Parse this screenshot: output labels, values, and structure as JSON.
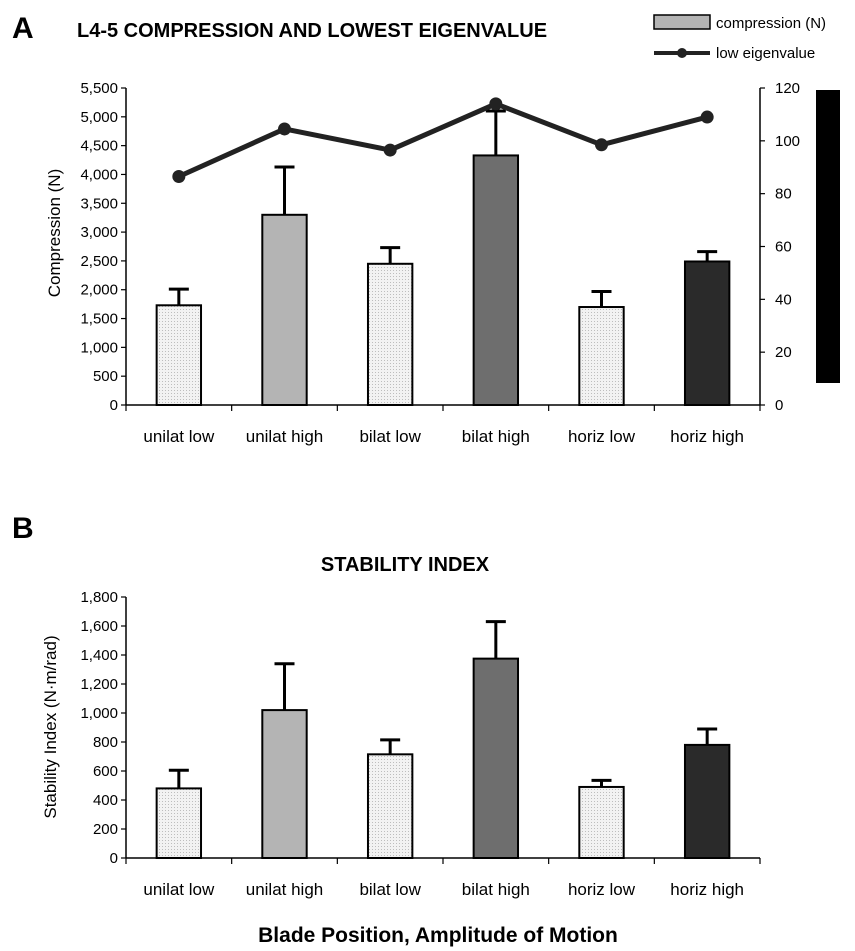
{
  "figure": {
    "panel_a_letter": "A",
    "panel_b_letter": "B",
    "shared_xlabel": "Blade Position, Amplitude of Motion"
  },
  "colors": {
    "dotted_fill": "#ebebeb",
    "unilat_high": "#b4b4b4",
    "bilat_high": "#6e6e6e",
    "horiz_high": "#2a2a2a",
    "line": "#222222",
    "axis": "#000000"
  },
  "chart_data": [
    {
      "type": "bar",
      "title": "L4-5 COMPRESSION AND LOWEST EIGENVALUE",
      "categories": [
        "unilat low",
        "unilat high",
        "bilat low",
        "bilat high",
        "horiz low",
        "horiz high"
      ],
      "series": [
        {
          "name": "compression (N)",
          "axis": "left",
          "values": [
            1730,
            3300,
            2450,
            4330,
            1700,
            2490
          ],
          "error_plus": [
            280,
            830,
            280,
            770,
            270,
            170
          ]
        },
        {
          "name": "low eigenvalue",
          "type": "line",
          "axis": "right",
          "values": [
            86.5,
            104.5,
            96.5,
            114,
            98.5,
            109
          ]
        }
      ],
      "ylabel": "Compression (N)",
      "ylim": [
        0,
        5500
      ],
      "yticks": [
        "0",
        "500",
        "1,000",
        "1,500",
        "2,000",
        "2,500",
        "3,000",
        "3,500",
        "4,000",
        "4,500",
        "5,000",
        "5,500"
      ],
      "y2lim": [
        0,
        120
      ],
      "y2ticks": [
        "0",
        "20",
        "40",
        "60",
        "80",
        "100",
        "120"
      ],
      "legend_position": "top-right",
      "grid": false
    },
    {
      "type": "bar",
      "title": "STABILITY INDEX",
      "categories": [
        "unilat low",
        "unilat high",
        "bilat low",
        "bilat high",
        "horiz low",
        "horiz high"
      ],
      "series": [
        {
          "values": [
            480,
            1020,
            715,
            1375,
            490,
            780
          ],
          "error_plus": [
            125,
            320,
            100,
            255,
            45,
            110
          ]
        }
      ],
      "ylabel": "Stability Index (N·m/rad)",
      "ylim": [
        0,
        1800
      ],
      "yticks": [
        "0",
        "200",
        "400",
        "600",
        "800",
        "1,000",
        "1,200",
        "1,400",
        "1,600",
        "1,800"
      ],
      "grid": false
    }
  ]
}
